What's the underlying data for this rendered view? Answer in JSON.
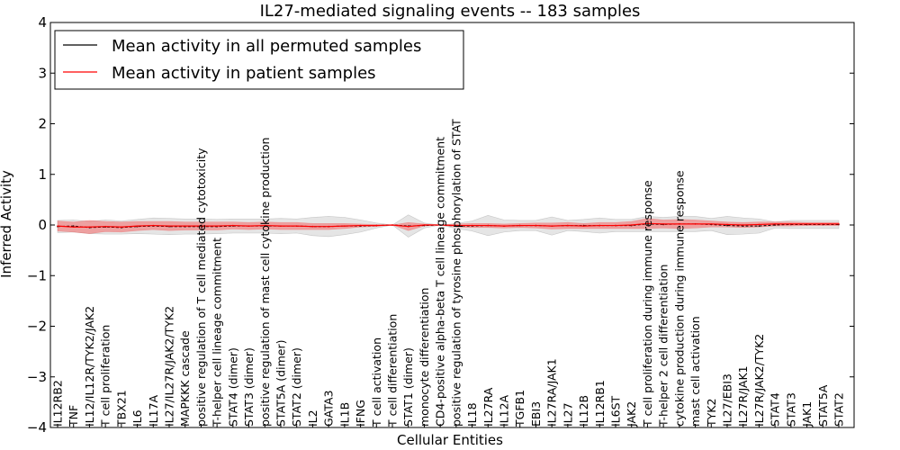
{
  "chart_data": {
    "type": "line",
    "title": "IL27-mediated signaling events -- 183 samples",
    "xlabel": "Cellular Entities",
    "ylabel": "Inferred Activity",
    "ylim": [
      -4,
      4
    ],
    "yticks": [
      -4,
      -3,
      -2,
      -1,
      0,
      1,
      2,
      3,
      4
    ],
    "ytick_labels": [
      "−4",
      "−3",
      "−2",
      "−1",
      "0",
      "1",
      "2",
      "3",
      "4"
    ],
    "legend_position": "top-left",
    "categories": [
      "IL12RB2",
      "TNF",
      "IL12/IL12R/TYK2/JAK2",
      "T cell proliferation",
      "TBX21",
      "IL6",
      "IL17A",
      "IL27/IL27R/JAK2/TYK2",
      "MAPKKK cascade",
      "positive regulation of T cell mediated cytotoxicity",
      "T-helper cell lineage commitment",
      "STAT4 (dimer)",
      "STAT3 (dimer)",
      "positive regulation of mast cell cytokine production",
      "STAT5A (dimer)",
      "STAT2 (dimer)",
      "IL2",
      "GATA3",
      "IL1B",
      "IFNG",
      "T cell activation",
      "T cell differentiation",
      "STAT1 (dimer)",
      "monocyte differentiation",
      "CD4-positive alpha-beta T cell lineage commitment",
      "positive regulation of tyrosine phosphorylation of STAT",
      "IL18",
      "IL27RA",
      "IL12A",
      "TGFB1",
      "EBI3",
      "IL27RA/JAK1",
      "IL27",
      "IL12B",
      "IL12RB1",
      "IL6ST",
      "JAK2",
      "T cell proliferation during immune response",
      "T-helper 2 cell differentiation",
      "cytokine production during immune response",
      "mast cell activation",
      "TYK2",
      "IL27/EBI3",
      "IL27R/JAK1",
      "IL27R/JAK2/TYK2",
      "STAT4",
      "STAT3",
      "JAK1",
      "STAT5A",
      "STAT2"
    ],
    "series": [
      {
        "name": "Mean activity in all permuted samples",
        "color": "#000000",
        "values": [
          -0.03,
          -0.02,
          -0.05,
          -0.04,
          -0.05,
          -0.03,
          -0.02,
          -0.03,
          -0.03,
          -0.03,
          -0.03,
          -0.02,
          -0.02,
          -0.02,
          -0.02,
          -0.02,
          -0.03,
          -0.03,
          -0.02,
          -0.02,
          -0.01,
          0.0,
          -0.02,
          -0.01,
          0.0,
          -0.02,
          -0.02,
          -0.01,
          -0.02,
          -0.01,
          -0.01,
          -0.02,
          -0.01,
          -0.01,
          -0.01,
          -0.01,
          -0.01,
          0.02,
          0.01,
          0.02,
          0.02,
          0.01,
          -0.01,
          -0.02,
          -0.02,
          0.0,
          0.01,
          0.01,
          0.01,
          0.01
        ],
        "band": [
          0.12,
          0.12,
          0.12,
          0.14,
          0.13,
          0.14,
          0.16,
          0.16,
          0.15,
          0.15,
          0.14,
          0.14,
          0.14,
          0.14,
          0.15,
          0.14,
          0.18,
          0.2,
          0.17,
          0.12,
          0.05,
          0.0,
          0.22,
          0.05,
          0.0,
          0.05,
          0.1,
          0.2,
          0.12,
          0.1,
          0.1,
          0.18,
          0.1,
          0.12,
          0.15,
          0.12,
          0.12,
          0.15,
          0.14,
          0.15,
          0.15,
          0.12,
          0.18,
          0.16,
          0.14,
          0.06,
          0.08,
          0.08,
          0.08,
          0.08
        ]
      },
      {
        "name": "Mean activity in patient samples",
        "color": "#ff0000",
        "values": [
          -0.02,
          -0.04,
          -0.04,
          -0.03,
          -0.04,
          -0.02,
          -0.01,
          -0.02,
          -0.02,
          -0.02,
          -0.02,
          -0.01,
          -0.02,
          -0.01,
          -0.02,
          -0.02,
          -0.03,
          -0.03,
          -0.02,
          -0.01,
          -0.01,
          0.0,
          -0.03,
          0.0,
          0.0,
          -0.01,
          -0.01,
          -0.01,
          -0.02,
          -0.01,
          -0.01,
          -0.02,
          -0.01,
          -0.02,
          -0.01,
          -0.01,
          0.0,
          0.03,
          0.02,
          0.02,
          0.02,
          0.02,
          0.01,
          0.0,
          0.01,
          0.02,
          0.02,
          0.02,
          0.02,
          0.02
        ],
        "band": [
          0.1,
          0.1,
          0.13,
          0.1,
          0.1,
          0.09,
          0.08,
          0.09,
          0.08,
          0.08,
          0.08,
          0.07,
          0.07,
          0.07,
          0.07,
          0.07,
          0.06,
          0.06,
          0.05,
          0.03,
          0.02,
          0.0,
          0.08,
          0.02,
          0.0,
          0.03,
          0.04,
          0.04,
          0.04,
          0.04,
          0.05,
          0.06,
          0.06,
          0.05,
          0.06,
          0.06,
          0.07,
          0.1,
          0.08,
          0.09,
          0.08,
          0.06,
          0.05,
          0.05,
          0.05,
          0.04,
          0.04,
          0.03,
          0.03,
          0.03
        ]
      }
    ]
  }
}
